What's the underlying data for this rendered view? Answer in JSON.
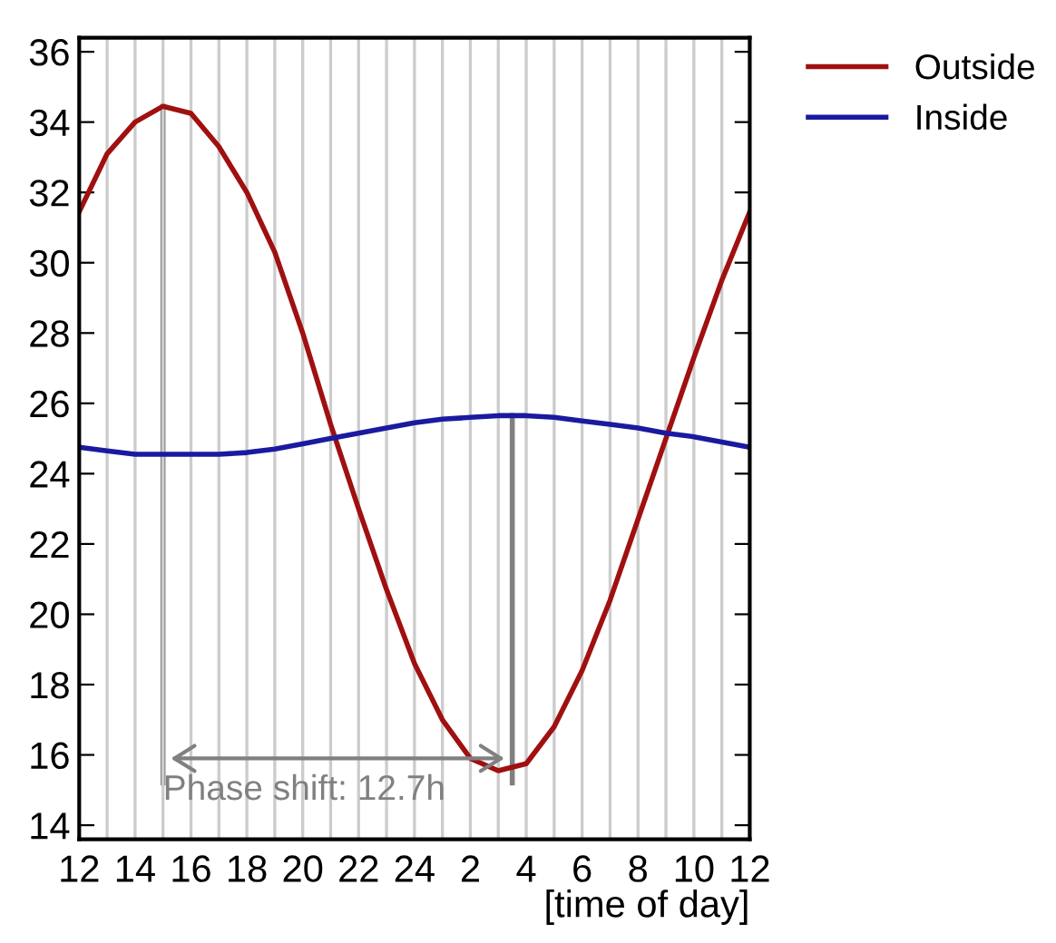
{
  "chart_data": {
    "type": "line",
    "xlabel": "[time of day]",
    "categories": [
      "12",
      null,
      "14",
      null,
      "16",
      null,
      "18",
      null,
      "20",
      null,
      "22",
      null,
      "24",
      null,
      "2",
      null,
      "4",
      null,
      "6",
      null,
      "8",
      null,
      "10",
      null,
      "12"
    ],
    "series": [
      {
        "name": "Outside",
        "color": "#a01010",
        "values": [
          31.45,
          33.1,
          34.0,
          34.45,
          34.25,
          33.3,
          32.0,
          30.3,
          28.0,
          25.4,
          23.0,
          20.7,
          18.6,
          17.0,
          15.9,
          15.55,
          15.75,
          16.8,
          18.4,
          20.4,
          22.7,
          25.0,
          27.3,
          29.5,
          31.45
        ]
      },
      {
        "name": "Inside",
        "color": "#1a1aa0",
        "values": [
          24.75,
          24.65,
          24.55,
          24.55,
          24.55,
          24.55,
          24.6,
          24.7,
          24.85,
          25.0,
          25.15,
          25.3,
          25.45,
          25.55,
          25.6,
          25.65,
          25.65,
          25.6,
          25.5,
          25.4,
          25.3,
          25.15,
          25.05,
          24.9,
          24.75
        ]
      }
    ],
    "ylim": [
      13.6,
      36.4
    ],
    "yticks": [
      14,
      16,
      18,
      20,
      22,
      24,
      26,
      28,
      30,
      32,
      34,
      36
    ],
    "grid": "x",
    "legend": "top right",
    "marker": "none",
    "line_style": "solid",
    "annotations": [
      "Phase shift: 12.7h"
    ]
  }
}
